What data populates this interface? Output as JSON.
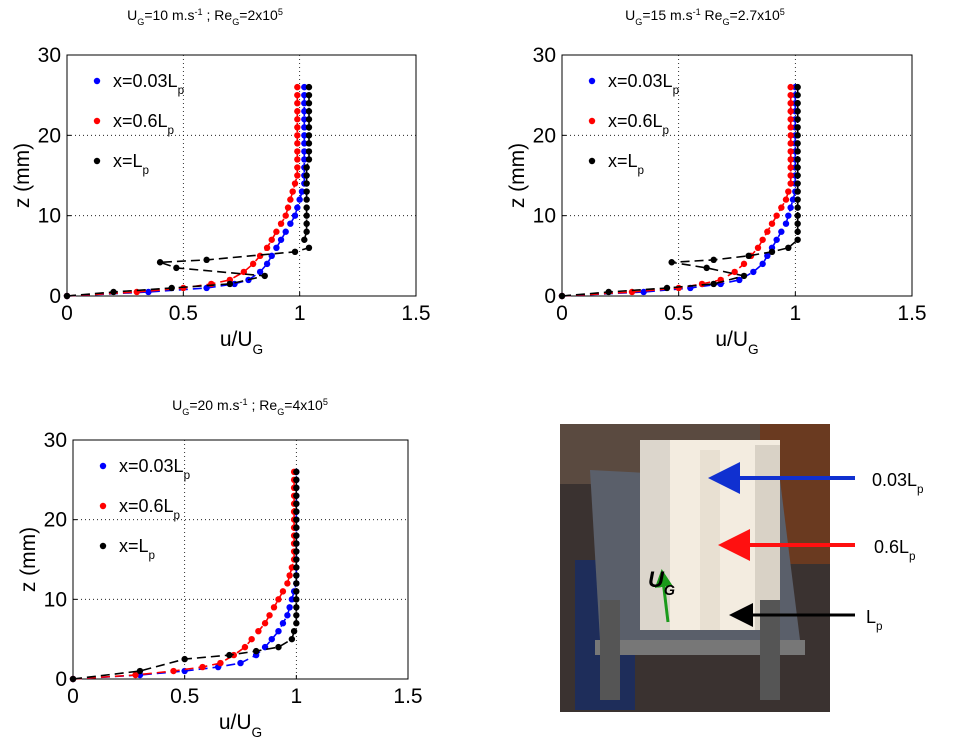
{
  "chart_data": [
    {
      "type": "scatter",
      "title": [
        {
          "text": "U"
        },
        {
          "text": "G",
          "style": "sub"
        },
        {
          "text": "=10 m.s"
        },
        {
          "text": "-1",
          "style": "sup"
        },
        {
          "text": " ; Re"
        },
        {
          "text": "G",
          "style": "sub"
        },
        {
          "text": "=2x10"
        },
        {
          "text": "5",
          "style": "sup"
        }
      ],
      "xlabel": [
        {
          "text": "u/U"
        },
        {
          "text": "G",
          "style": "sub"
        }
      ],
      "ylabel": "z (mm)",
      "xlim": [
        0,
        1.5
      ],
      "ylim": [
        0,
        30
      ],
      "xticks": [
        0,
        0.5,
        1,
        1.5
      ],
      "yticks": [
        0,
        10,
        20,
        30
      ],
      "grid": true,
      "series": [
        {
          "name": [
            {
              "text": "x=0.03L"
            },
            {
              "text": "p",
              "style": "sub"
            }
          ],
          "color": "#0000ff",
          "x": [
            0,
            0.35,
            0.6,
            0.72,
            0.78,
            0.83,
            0.86,
            0.88,
            0.9,
            0.92,
            0.94,
            0.96,
            0.98,
            0.99,
            1,
            1.01,
            1.02,
            1.02,
            1.02,
            1.02,
            1.02,
            1.02,
            1.02,
            1.02,
            1.02,
            1.02,
            1.02,
            1.02,
            1.02
          ],
          "y": [
            0,
            0.5,
            1,
            1.5,
            2,
            3,
            4,
            5,
            6,
            7,
            8,
            9,
            10,
            11,
            12,
            13,
            14,
            15,
            16,
            17,
            18,
            19,
            20,
            21,
            22,
            23,
            24,
            25,
            26
          ]
        },
        {
          "name": [
            {
              "text": "x=0.6L"
            },
            {
              "text": "p",
              "style": "sub"
            }
          ],
          "color": "#ff0000",
          "x": [
            0,
            0.3,
            0.5,
            0.62,
            0.7,
            0.76,
            0.8,
            0.83,
            0.86,
            0.88,
            0.9,
            0.92,
            0.94,
            0.95,
            0.96,
            0.97,
            0.98,
            0.99,
            0.99,
            0.99,
            0.99,
            0.99,
            0.99,
            0.99,
            0.99,
            0.99,
            0.99,
            0.99,
            0.99
          ],
          "y": [
            0,
            0.5,
            1,
            1.5,
            2,
            3,
            4,
            5,
            6,
            7,
            8,
            9,
            10,
            11,
            12,
            13,
            14,
            15,
            16,
            17,
            18,
            19,
            20,
            21,
            22,
            23,
            24,
            25,
            26
          ]
        },
        {
          "name": [
            {
              "text": "x=L"
            },
            {
              "text": "p",
              "style": "sub"
            }
          ],
          "color": "#000000",
          "x": [
            0,
            0.2,
            0.45,
            0.7,
            0.85,
            0.47,
            0.4,
            0.6,
            0.98,
            1.04,
            1.02,
            1.03,
            1.03,
            1.03,
            1.03,
            1.03,
            1.03,
            1.03,
            1.03,
            1.03,
            1.04,
            1.04,
            1.04,
            1.04,
            1.04,
            1.04,
            1.04,
            1.04,
            1.04,
            1.04
          ],
          "y": [
            0,
            0.5,
            1,
            1.5,
            2.5,
            3.5,
            4.2,
            4.5,
            5.5,
            6,
            7,
            8,
            9,
            10,
            11,
            12,
            13,
            14,
            15,
            16,
            17,
            18,
            19,
            20,
            21,
            22,
            23,
            24,
            25,
            26
          ]
        }
      ]
    },
    {
      "type": "scatter",
      "title": [
        {
          "text": "U"
        },
        {
          "text": "G",
          "style": "sub"
        },
        {
          "text": "=15 m.s"
        },
        {
          "text": "-1",
          "style": "sup"
        },
        {
          "text": "  Re"
        },
        {
          "text": "G",
          "style": "sub"
        },
        {
          "text": "=2.7x10"
        },
        {
          "text": "5",
          "style": "sup"
        }
      ],
      "xlabel": [
        {
          "text": "u/U"
        },
        {
          "text": "G",
          "style": "sub"
        }
      ],
      "ylabel": "z (mm)",
      "xlim": [
        0,
        1.5
      ],
      "ylim": [
        0,
        30
      ],
      "xticks": [
        0,
        0.5,
        1,
        1.5
      ],
      "yticks": [
        0,
        10,
        20,
        30
      ],
      "grid": true,
      "series": [
        {
          "name": [
            {
              "text": "x=0.03L"
            },
            {
              "text": "p",
              "style": "sub"
            }
          ],
          "color": "#0000ff",
          "x": [
            0,
            0.35,
            0.55,
            0.68,
            0.76,
            0.82,
            0.86,
            0.88,
            0.9,
            0.92,
            0.94,
            0.96,
            0.97,
            0.98,
            0.99,
            1,
            1,
            1,
            1,
            1,
            1,
            1,
            1,
            1,
            1,
            1,
            1,
            1,
            1
          ],
          "y": [
            0,
            0.5,
            1,
            1.5,
            2,
            3,
            4,
            5,
            6,
            7,
            8,
            9,
            10,
            11,
            12,
            13,
            14,
            15,
            16,
            17,
            18,
            19,
            20,
            21,
            22,
            23,
            24,
            25,
            26
          ]
        },
        {
          "name": [
            {
              "text": "x=0.6L"
            },
            {
              "text": "p",
              "style": "sub"
            }
          ],
          "color": "#ff0000",
          "x": [
            0,
            0.3,
            0.5,
            0.6,
            0.68,
            0.74,
            0.78,
            0.81,
            0.84,
            0.86,
            0.88,
            0.9,
            0.92,
            0.94,
            0.96,
            0.97,
            0.98,
            0.98,
            0.98,
            0.98,
            0.98,
            0.98,
            0.98,
            0.98,
            0.98,
            0.98,
            0.98,
            0.98,
            0.98
          ],
          "y": [
            0,
            0.5,
            1,
            1.5,
            2,
            3,
            4,
            5,
            6,
            7,
            8,
            9,
            10,
            11,
            12,
            13,
            14,
            15,
            16,
            17,
            18,
            19,
            20,
            21,
            22,
            23,
            24,
            25,
            26
          ]
        },
        {
          "name": [
            {
              "text": "x=L"
            },
            {
              "text": "p",
              "style": "sub"
            }
          ],
          "color": "#000000",
          "x": [
            0,
            0.2,
            0.45,
            0.65,
            0.78,
            0.62,
            0.47,
            0.65,
            0.8,
            0.9,
            0.97,
            1.01,
            1.01,
            1.01,
            1.01,
            1.01,
            1.01,
            1.01,
            1.01,
            1.01,
            1.01,
            1.01,
            1.01,
            1.01,
            1.01,
            1.01,
            1.01,
            1.01,
            1.01,
            1.01,
            1.01
          ],
          "y": [
            0,
            0.5,
            1,
            1.5,
            2.5,
            3.5,
            4.2,
            4.5,
            5,
            5.5,
            6,
            7,
            8,
            9,
            10,
            11,
            12,
            13,
            14,
            15,
            16,
            17,
            18,
            19,
            20,
            21,
            22,
            23,
            24,
            25,
            26
          ]
        }
      ]
    },
    {
      "type": "scatter",
      "title": [
        {
          "text": "U"
        },
        {
          "text": "G",
          "style": "sub"
        },
        {
          "text": "=20 m.s"
        },
        {
          "text": "-1",
          "style": "sup"
        },
        {
          "text": " ; Re"
        },
        {
          "text": "G",
          "style": "sub"
        },
        {
          "text": "=4x10"
        },
        {
          "text": "5",
          "style": "sup"
        }
      ],
      "xlabel": [
        {
          "text": "u/U"
        },
        {
          "text": "G",
          "style": "sub"
        }
      ],
      "ylabel": "z (mm)",
      "xlim": [
        0,
        1.5
      ],
      "ylim": [
        0,
        30
      ],
      "xticks": [
        0,
        0.5,
        1,
        1.5
      ],
      "yticks": [
        0,
        10,
        20,
        30
      ],
      "grid": true,
      "series": [
        {
          "name": [
            {
              "text": "x=0.03L"
            },
            {
              "text": "p",
              "style": "sub"
            }
          ],
          "color": "#0000ff",
          "x": [
            0,
            0.3,
            0.5,
            0.65,
            0.75,
            0.82,
            0.86,
            0.89,
            0.92,
            0.94,
            0.96,
            0.97,
            0.98,
            0.99,
            1,
            1,
            1,
            1,
            1,
            1,
            1,
            1,
            1,
            1,
            1,
            1,
            1,
            1,
            1
          ],
          "y": [
            0,
            0.5,
            1,
            1.5,
            2,
            3,
            4,
            5,
            6,
            7,
            8,
            9,
            10,
            11,
            12,
            13,
            14,
            15,
            16,
            17,
            18,
            19,
            20,
            21,
            22,
            23,
            24,
            25,
            26
          ]
        },
        {
          "name": [
            {
              "text": "x=0.6L"
            },
            {
              "text": "p",
              "style": "sub"
            }
          ],
          "color": "#ff0000",
          "x": [
            0,
            0.28,
            0.45,
            0.58,
            0.66,
            0.72,
            0.77,
            0.8,
            0.83,
            0.86,
            0.88,
            0.9,
            0.92,
            0.94,
            0.96,
            0.97,
            0.98,
            0.99,
            0.99,
            0.99,
            0.99,
            0.99,
            0.99,
            0.99,
            0.99,
            0.99,
            0.99,
            0.99,
            0.99
          ],
          "y": [
            0,
            0.5,
            1,
            1.5,
            2,
            3,
            4,
            5,
            6,
            7,
            8,
            9,
            10,
            11,
            12,
            13,
            14,
            15,
            16,
            17,
            18,
            19,
            20,
            21,
            22,
            23,
            24,
            25,
            26
          ]
        },
        {
          "name": [
            {
              "text": "x=L"
            },
            {
              "text": "p",
              "style": "sub"
            }
          ],
          "color": "#000000",
          "x": [
            0,
            0.3,
            0.5,
            0.7,
            0.82,
            0.92,
            0.98,
            0.99,
            1,
            1,
            1,
            1,
            1,
            1,
            1,
            1,
            1,
            1,
            1,
            1,
            1,
            1,
            1,
            1,
            1,
            1,
            1,
            1
          ],
          "y": [
            0,
            1,
            2.5,
            3,
            3.5,
            4,
            5,
            6,
            7,
            8,
            9,
            10,
            11,
            12,
            13,
            14,
            15,
            16,
            17,
            18,
            19,
            20,
            21,
            22,
            23,
            24,
            25,
            26
          ]
        }
      ]
    }
  ],
  "photo": {
    "labels": [
      [
        {
          "text": "0.03L"
        },
        {
          "text": "p",
          "style": "sub"
        }
      ],
      [
        {
          "text": "0.6L"
        },
        {
          "text": "p",
          "style": "sub"
        }
      ],
      [
        {
          "text": "L"
        },
        {
          "text": "p",
          "style": "sub"
        }
      ]
    ],
    "flow_label": [
      {
        "text": "U"
      },
      {
        "text": "G",
        "style": "sub"
      }
    ]
  }
}
